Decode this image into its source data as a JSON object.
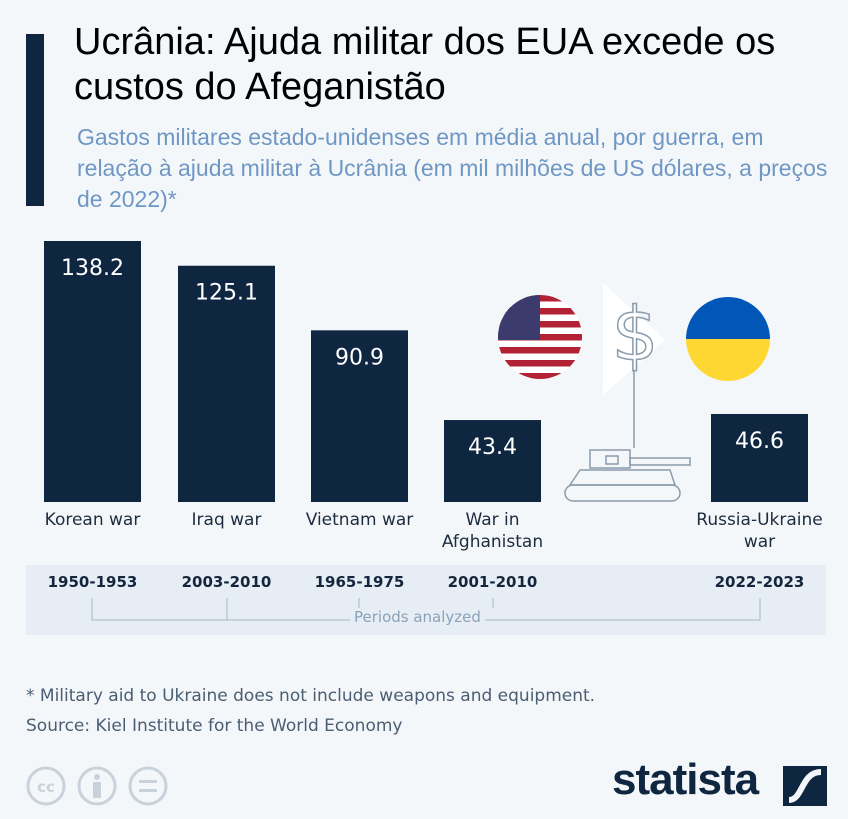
{
  "title": "Ucrânia: Ajuda militar dos EUA excede os custos do Afeganistão",
  "subtitle": "Gastos militares estado-unidenses em média anual, por guerra, em relação à ajuda militar à Ucrânia (em mil milhões de US dólares, a preços de 2022)*",
  "chart_data": {
    "type": "bar",
    "categories": [
      "Korean war",
      "Iraq war",
      "Vietnam war",
      "War in Afghanistan",
      "Russia-Ukraine war"
    ],
    "values": [
      138.2,
      125.1,
      90.9,
      43.4,
      46.6
    ],
    "labels": [
      "138.2",
      "125.1",
      "90.9",
      "43.4",
      "46.6"
    ],
    "periods": [
      "1950-1953",
      "2003-2010",
      "1965-1975",
      "2001-2010",
      "2022-2023"
    ],
    "periods_label": "Periods analyzed",
    "bar_color": "#0f2640",
    "ylim": [
      0,
      138.2
    ],
    "grid": false
  },
  "footnote": "* Military aid to Ukraine does not include weapons and equipment.",
  "source": "Source: Kiel Institute for the World Economy",
  "brand": "statista",
  "icons": [
    "us-flag-icon",
    "dollar-icon",
    "tank-icon",
    "ukraine-flag-icon",
    "cc-icon",
    "by-icon",
    "nd-icon",
    "statista-logo-icon"
  ]
}
